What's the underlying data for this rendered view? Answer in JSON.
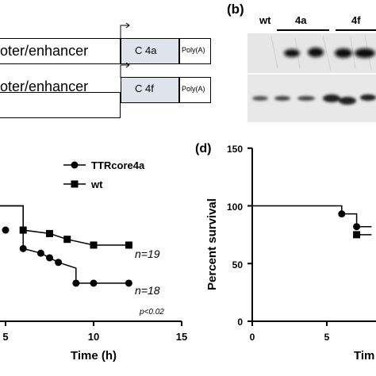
{
  "constructs": [
    {
      "promoter": "oter/enhancer",
      "gene": "C 4a",
      "polya": "Poly(A)"
    },
    {
      "promoter": "oter/enhancer",
      "gene": "C 4f",
      "polya": "Poly(A)"
    }
  ],
  "blot": {
    "panel_label": "(b)",
    "lane_wt": "wt",
    "lane_4a": "4a",
    "lane_4f": "4f"
  },
  "panel_c": {
    "legend": [
      "TTRcore4a",
      "wt"
    ],
    "annotations": [
      "n=19",
      "n=18",
      "p<0.02"
    ],
    "x_ticks": [
      "5",
      "10",
      "15"
    ],
    "xlabel": "Time (h)"
  },
  "panel_d": {
    "label": "(d)",
    "ylabel": "Percent survival",
    "y_ticks": [
      "0",
      "50",
      "100",
      "150"
    ],
    "x_ticks": [
      "0",
      "5"
    ],
    "xlabel": "Tim"
  },
  "chart_data": [
    {
      "type": "line",
      "title": "",
      "xlabel": "Time (h)",
      "ylabel": "",
      "xlim": [
        4,
        15
      ],
      "ylim": [
        0,
        150
      ],
      "series": [
        {
          "name": "TTRcore4a",
          "marker": "circle",
          "step": {
            "x": [
              4,
              6,
              6,
              7,
              7.5,
              8,
              9,
              9,
              12
            ],
            "y": [
              100,
              100,
              63,
              59,
              55,
              51,
              46,
              33,
              33
            ]
          },
          "points": {
            "x": [
              5,
              6,
              7,
              7.5,
              8,
              9,
              10,
              12
            ],
            "y": [
              79,
              63,
              59,
              55,
              51,
              33,
              33,
              33
            ]
          }
        },
        {
          "name": "wt",
          "marker": "square",
          "step": {
            "x": [
              4,
              6,
              6,
              7.5,
              8.5,
              10,
              12
            ],
            "y": [
              100,
              100,
              79,
              76,
              71,
              66,
              66
            ]
          },
          "points": {
            "x": [
              6,
              7.5,
              8.5,
              10,
              12
            ],
            "y": [
              79,
              76,
              71,
              66,
              66
            ]
          }
        }
      ]
    },
    {
      "type": "line",
      "title": "",
      "xlabel": "Tim",
      "ylabel": "Percent survival",
      "xlim": [
        0,
        8
      ],
      "ylim": [
        0,
        150
      ],
      "series": [
        {
          "name": "",
          "marker": "circle",
          "step": {
            "x": [
              0,
              6,
              6,
              7,
              7,
              8
            ],
            "y": [
              100,
              100,
              93,
              93,
              82,
              82
            ]
          },
          "points": {
            "x": [
              6,
              7
            ],
            "y": [
              93,
              82
            ]
          }
        },
        {
          "name": "",
          "marker": "square",
          "step": {
            "x": [
              7,
              8
            ],
            "y": [
              75,
              75
            ]
          },
          "points": {
            "x": [
              7
            ],
            "y": [
              75
            ]
          }
        }
      ]
    }
  ]
}
